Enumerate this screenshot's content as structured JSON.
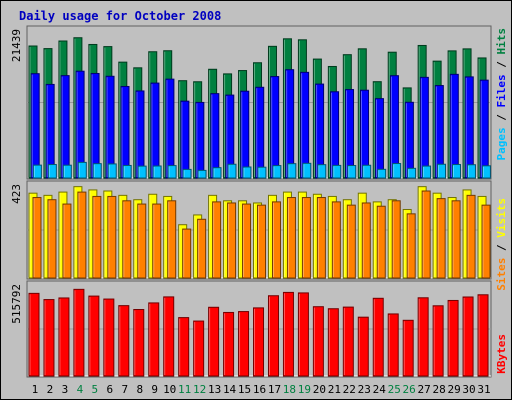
{
  "title": "Daily usage for October 2008",
  "colors": {
    "background": "#c0c0c0",
    "title": "#0000c0",
    "pages": "#00c0ff",
    "files": "#0000ff",
    "hits": "#008040",
    "sites": "#ff8000",
    "visits": "#ffff00",
    "kbytes": "#ff0000",
    "weekday_label": "#000000",
    "weekend_label": "#008040",
    "separator": "#000000"
  },
  "chart_data": [
    {
      "type": "bar",
      "panel": "hits-files-pages",
      "y_max_label": "21439",
      "legend": [
        "Pages",
        "Files",
        "Hits"
      ],
      "categories": [
        "1",
        "2",
        "3",
        "4",
        "5",
        "6",
        "7",
        "8",
        "9",
        "10",
        "11",
        "12",
        "13",
        "14",
        "15",
        "16",
        "17",
        "18",
        "19",
        "20",
        "21",
        "22",
        "23",
        "24",
        "25",
        "26",
        "27",
        "28",
        "29",
        "30",
        "31"
      ],
      "weekend_days": [
        "4",
        "5",
        "11",
        "12",
        "18",
        "19",
        "25",
        "26"
      ],
      "ylim": [
        0,
        21439
      ],
      "series": [
        {
          "name": "Hits",
          "values": [
            19790,
            19400,
            20540,
            21030,
            20020,
            19700,
            17370,
            16520,
            18930,
            19080,
            14590,
            14430,
            16300,
            15610,
            16110,
            17280,
            19740,
            20870,
            20720,
            17830,
            16720,
            18490,
            19370,
            14440,
            18860,
            13510,
            19870,
            17520,
            19060,
            19360,
            18000
          ]
        },
        {
          "name": "Files",
          "values": [
            15640,
            14030,
            15350,
            16010,
            15670,
            15250,
            13720,
            13050,
            14230,
            14820,
            11520,
            11330,
            12650,
            12430,
            13010,
            13600,
            15210,
            16240,
            15840,
            14080,
            12930,
            13260,
            13160,
            11900,
            15340,
            11350,
            15090,
            13860,
            15540,
            15160,
            14670
          ]
        },
        {
          "name": "Pages",
          "values": [
            1930,
            2020,
            1920,
            2340,
            2150,
            2110,
            1880,
            1780,
            1800,
            1860,
            1290,
            1140,
            1550,
            2060,
            1650,
            1620,
            1860,
            2150,
            2200,
            2000,
            1890,
            1870,
            1910,
            1300,
            2170,
            1450,
            1790,
            2060,
            2020,
            1990,
            1830
          ]
        }
      ]
    },
    {
      "type": "bar",
      "panel": "visits-sites",
      "y_max_label": "423",
      "legend": [
        "Sites",
        "Visits"
      ],
      "categories": [
        "1",
        "2",
        "3",
        "4",
        "5",
        "6",
        "7",
        "8",
        "9",
        "10",
        "11",
        "12",
        "13",
        "14",
        "15",
        "16",
        "17",
        "18",
        "19",
        "20",
        "21",
        "22",
        "23",
        "24",
        "25",
        "26",
        "27",
        "28",
        "29",
        "30",
        "31"
      ],
      "ylim": [
        0,
        423
      ],
      "series": [
        {
          "name": "Visits",
          "values": [
            390,
            380,
            395,
            420,
            405,
            400,
            380,
            360,
            385,
            375,
            245,
            290,
            380,
            355,
            355,
            345,
            380,
            395,
            395,
            385,
            375,
            360,
            390,
            350,
            360,
            315,
            420,
            390,
            370,
            405,
            375
          ]
        },
        {
          "name": "Sites",
          "values": [
            370,
            360,
            340,
            395,
            375,
            375,
            355,
            340,
            340,
            355,
            225,
            270,
            350,
            345,
            340,
            335,
            350,
            370,
            370,
            370,
            350,
            335,
            345,
            330,
            355,
            295,
            400,
            365,
            355,
            380,
            335
          ]
        }
      ]
    },
    {
      "type": "bar",
      "panel": "kbytes",
      "y_max_label": "515792",
      "legend": [
        "KBytes"
      ],
      "categories": [
        "1",
        "2",
        "3",
        "4",
        "5",
        "6",
        "7",
        "8",
        "9",
        "10",
        "11",
        "12",
        "13",
        "14",
        "15",
        "16",
        "17",
        "18",
        "19",
        "20",
        "21",
        "22",
        "23",
        "24",
        "25",
        "26",
        "27",
        "28",
        "29",
        "30",
        "31"
      ],
      "ylim": [
        0,
        515792
      ],
      "series": [
        {
          "name": "KBytes",
          "values": [
            473600,
            438100,
            447300,
            496600,
            458000,
            441000,
            403300,
            381100,
            418900,
            453400,
            334700,
            314900,
            393800,
            364200,
            369300,
            390400,
            460100,
            479100,
            476200,
            397200,
            385600,
            394900,
            337100,
            445300,
            355700,
            319200,
            448300,
            402500,
            432900,
            452800,
            465600
          ]
        }
      ]
    }
  ]
}
